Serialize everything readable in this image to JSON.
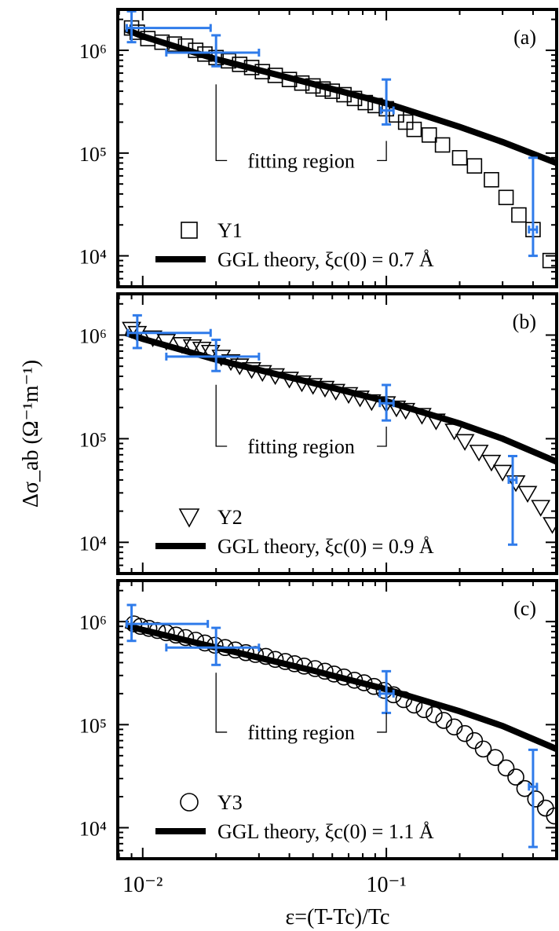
{
  "figure": {
    "ylabel": "Δσ_ab (Ω⁻¹m⁻¹)",
    "xlabel": "ε=(T-Tc)/Tc",
    "xscale": "log",
    "yscale": "log",
    "xlim": [
      0.0079,
      0.5
    ],
    "x_tick_labels": [
      "10⁻²",
      "10⁻¹"
    ]
  },
  "chart_data": [
    {
      "panel": "a",
      "type": "scatter",
      "panel_label": "(a)",
      "ylim": [
        5000,
        2500000
      ],
      "y_tick_labels": [
        "10⁴",
        "10⁵",
        "10⁶"
      ],
      "legend_placement": "bottom-left",
      "annotation": "fitting region",
      "fitting_region": [
        0.02,
        0.1
      ],
      "series": [
        {
          "name": "Y1",
          "marker": "square",
          "x": [
            0.009,
            0.0095,
            0.0105,
            0.012,
            0.0135,
            0.015,
            0.0165,
            0.018,
            0.02,
            0.0225,
            0.025,
            0.028,
            0.031,
            0.035,
            0.04,
            0.045,
            0.05,
            0.055,
            0.06,
            0.067,
            0.074,
            0.082,
            0.09,
            0.1,
            0.11,
            0.12,
            0.13,
            0.15,
            0.17,
            0.2,
            0.23,
            0.27,
            0.31,
            0.35,
            0.4,
            0.47
          ],
          "y": [
            1650000,
            1500000,
            1300000,
            1200000,
            1150000,
            1100000,
            1000000,
            920000,
            850000,
            790000,
            730000,
            680000,
            620000,
            570000,
            520000,
            480000,
            450000,
            420000,
            400000,
            370000,
            340000,
            310000,
            290000,
            270000,
            235000,
            200000,
            170000,
            150000,
            120000,
            90000,
            75000,
            55000,
            37000,
            25000,
            18000,
            9000
          ]
        },
        {
          "name": "GGL theory, ξc(0) = 0.7 Å",
          "kind": "line",
          "x": [
            0.0085,
            0.01,
            0.02,
            0.05,
            0.1,
            0.2,
            0.3,
            0.5
          ],
          "y": [
            1600000,
            1370000,
            820000,
            470000,
            305000,
            180000,
            128000,
            80000
          ]
        }
      ],
      "error_bars": [
        {
          "x": 0.009,
          "y": 1650000,
          "xmin": 0.0086,
          "xmax": 0.019,
          "ymin": 1200000,
          "ymax": 2400000
        },
        {
          "x": 0.02,
          "y": 950000,
          "xmin": 0.0125,
          "xmax": 0.03,
          "ymin": 700000,
          "ymax": 1400000
        },
        {
          "x": 0.1,
          "y": 260000,
          "xmin": 0.095,
          "xmax": 0.107,
          "ymin": 190000,
          "ymax": 520000
        },
        {
          "x": 0.4,
          "y": 18000,
          "xmin": 0.385,
          "xmax": 0.415,
          "ymin": 10000,
          "ymax": 90000
        }
      ]
    },
    {
      "panel": "b",
      "type": "scatter",
      "panel_label": "(b)",
      "ylim": [
        5000,
        2500000
      ],
      "y_tick_labels": [
        "10⁴",
        "10⁵",
        "10⁶"
      ],
      "legend_placement": "bottom-left",
      "annotation": "fitting region",
      "fitting_region": [
        0.02,
        0.1
      ],
      "series": [
        {
          "name": "Y2",
          "marker": "triangle-down",
          "x": [
            0.009,
            0.0095,
            0.011,
            0.0125,
            0.0145,
            0.016,
            0.0175,
            0.019,
            0.021,
            0.023,
            0.025,
            0.028,
            0.031,
            0.035,
            0.04,
            0.045,
            0.05,
            0.056,
            0.062,
            0.07,
            0.078,
            0.087,
            0.1,
            0.11,
            0.12,
            0.14,
            0.16,
            0.19,
            0.21,
            0.24,
            0.27,
            0.3,
            0.34,
            0.38,
            0.43,
            0.48
          ],
          "y": [
            1150000,
            1050000,
            950000,
            880000,
            820000,
            780000,
            740000,
            690000,
            620000,
            560000,
            510000,
            470000,
            440000,
            410000,
            380000,
            350000,
            330000,
            310000,
            290000,
            270000,
            250000,
            230000,
            220000,
            200000,
            190000,
            170000,
            150000,
            120000,
            95000,
            75000,
            60000,
            48000,
            38000,
            30000,
            22000,
            15000
          ]
        },
        {
          "name": "GGL theory, ξc(0) = 0.9 Å",
          "kind": "line",
          "x": [
            0.0085,
            0.01,
            0.02,
            0.05,
            0.1,
            0.2,
            0.3,
            0.5
          ],
          "y": [
            1050000,
            920000,
            580000,
            345000,
            230000,
            140000,
            100000,
            60000
          ]
        }
      ],
      "error_bars": [
        {
          "x": 0.0095,
          "y": 1050000,
          "xmin": 0.0087,
          "xmax": 0.019,
          "ymin": 750000,
          "ymax": 1550000
        },
        {
          "x": 0.02,
          "y": 620000,
          "xmin": 0.0125,
          "xmax": 0.03,
          "ymin": 450000,
          "ymax": 900000
        },
        {
          "x": 0.1,
          "y": 220000,
          "xmin": 0.094,
          "xmax": 0.107,
          "ymin": 150000,
          "ymax": 330000
        },
        {
          "x": 0.33,
          "y": 40000,
          "xmin": 0.318,
          "xmax": 0.342,
          "ymin": 9500,
          "ymax": 68000
        }
      ]
    },
    {
      "panel": "c",
      "type": "scatter",
      "panel_label": "(c)",
      "ylim": [
        5000,
        2500000
      ],
      "y_tick_labels": [
        "10⁴",
        "10⁵",
        "10⁶"
      ],
      "legend_placement": "bottom-left",
      "annotation": "fitting region",
      "fitting_region": [
        0.02,
        0.1
      ],
      "series": [
        {
          "name": "Y3",
          "marker": "circle",
          "x": [
            0.0092,
            0.0098,
            0.0106,
            0.0115,
            0.0125,
            0.0137,
            0.015,
            0.0165,
            0.018,
            0.0198,
            0.0218,
            0.024,
            0.0265,
            0.029,
            0.032,
            0.035,
            0.0385,
            0.042,
            0.046,
            0.051,
            0.056,
            0.061,
            0.067,
            0.074,
            0.081,
            0.089,
            0.098,
            0.107,
            0.118,
            0.13,
            0.143,
            0.157,
            0.172,
            0.19,
            0.21,
            0.23,
            0.25,
            0.28,
            0.31,
            0.34,
            0.37,
            0.41,
            0.45,
            0.49
          ],
          "y": [
            950000,
            900000,
            860000,
            820000,
            780000,
            740000,
            700000,
            660000,
            620000,
            590000,
            560000,
            530000,
            500000,
            480000,
            460000,
            430000,
            410000,
            390000,
            370000,
            350000,
            330000,
            310000,
            290000,
            270000,
            255000,
            235000,
            215000,
            195000,
            175000,
            155000,
            140000,
            125000,
            110000,
            95000,
            82000,
            70000,
            58000,
            48000,
            38000,
            31000,
            24000,
            19000,
            15500,
            13000
          ]
        },
        {
          "name": "GGL theory, ξc(0) = 1.1 Å",
          "kind": "line",
          "x": [
            0.0085,
            0.01,
            0.02,
            0.05,
            0.1,
            0.2,
            0.3,
            0.5
          ],
          "y": [
            920000,
            830000,
            560000,
            335000,
            220000,
            135000,
            97000,
            58000
          ]
        }
      ],
      "error_bars": [
        {
          "x": 0.009,
          "y": 950000,
          "xmin": 0.0086,
          "xmax": 0.0185,
          "ymin": 650000,
          "ymax": 1450000
        },
        {
          "x": 0.02,
          "y": 560000,
          "xmin": 0.0125,
          "xmax": 0.03,
          "ymin": 380000,
          "ymax": 870000
        },
        {
          "x": 0.1,
          "y": 200000,
          "xmin": 0.094,
          "xmax": 0.107,
          "ymin": 130000,
          "ymax": 330000
        },
        {
          "x": 0.4,
          "y": 25000,
          "xmin": 0.385,
          "xmax": 0.415,
          "ymin": 6500,
          "ymax": 57000
        }
      ]
    }
  ]
}
